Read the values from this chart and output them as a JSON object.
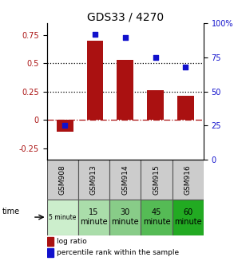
{
  "title": "GDS33 / 4270",
  "samples": [
    "GSM908",
    "GSM913",
    "GSM914",
    "GSM915",
    "GSM916"
  ],
  "time_labels": [
    "5 minute",
    "15\nminute",
    "30\nminute",
    "45\nminute",
    "60\nminute"
  ],
  "log_ratios": [
    -0.1,
    0.7,
    0.53,
    0.26,
    0.21
  ],
  "percentile_ranks": [
    25.0,
    92.0,
    90.0,
    75.0,
    68.0
  ],
  "bar_color": "#aa1111",
  "dot_color": "#1111cc",
  "left_ylim": [
    -0.35,
    0.85
  ],
  "right_ylim": [
    0,
    100
  ],
  "left_yticks": [
    -0.25,
    0.0,
    0.25,
    0.5,
    0.75
  ],
  "right_yticks": [
    0,
    25,
    50,
    75,
    100
  ],
  "sample_bg": "#cccccc",
  "time_colors": [
    "#cceecc",
    "#aaddaa",
    "#88cc88",
    "#55bb55",
    "#22aa22"
  ],
  "legend_bar_label": "log ratio",
  "legend_dot_label": "percentile rank within the sample"
}
